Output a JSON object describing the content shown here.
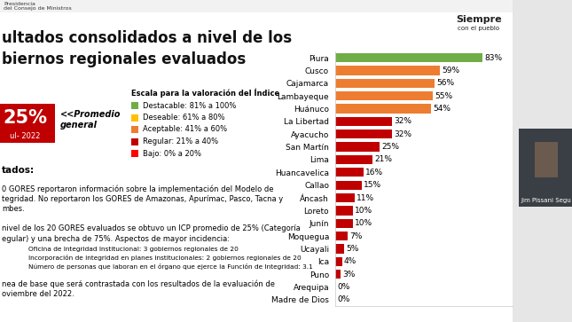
{
  "chart_data": {
    "type": "bar",
    "orientation": "horizontal",
    "categories": [
      "Piura",
      "Cusco",
      "Cajamarca",
      "Lambayeque",
      "Huánuco",
      "La Libertad",
      "Ayacucho",
      "San Martín",
      "Lima",
      "Huancavelica",
      "Callao",
      "Áncash",
      "Loreto",
      "Junín",
      "Moquegua",
      "Ucayali",
      "Ica",
      "Puno",
      "Arequipa",
      "Madre de Dios"
    ],
    "values": [
      83,
      59,
      56,
      55,
      54,
      32,
      32,
      25,
      21,
      16,
      15,
      11,
      10,
      10,
      7,
      5,
      4,
      3,
      0,
      0
    ],
    "value_labels": [
      "83%",
      "59%",
      "56%",
      "55%",
      "54%",
      "32%",
      "32%",
      "25%",
      "21%",
      "16%",
      "15%",
      "11%",
      "10%",
      "10%",
      "7%",
      "5%",
      "4%",
      "3%",
      "0%",
      "0%"
    ],
    "colors": [
      "#70ad47",
      "#ed7d31",
      "#ed7d31",
      "#ed7d31",
      "#ed7d31",
      "#c00000",
      "#c00000",
      "#c00000",
      "#c00000",
      "#c00000",
      "#c00000",
      "#c00000",
      "#c00000",
      "#c00000",
      "#c00000",
      "#c00000",
      "#c00000",
      "#c00000",
      "#c00000",
      "#c00000"
    ],
    "xlim": [
      0,
      100
    ],
    "xticks": [],
    "data_labels": true,
    "tick_labels": "y",
    "grid": false
  },
  "slide": {
    "header": [
      "Presidencia",
      "del Consejo de Ministros"
    ],
    "brand": [
      "Siempre",
      "con el pueblo"
    ],
    "title_lines": [
      "ultados consolidados a nivel de los",
      "biernos regionales evaluados"
    ],
    "scale": {
      "title": "Escala para la valoración del Índice",
      "items": [
        {
          "label": "Destacable: 81% a 100%",
          "color": "#70ad47"
        },
        {
          "label": "Deseable: 61% a 80%",
          "color": "#ffc000"
        },
        {
          "label": "Aceptable: 41% a 60%",
          "color": "#ed7d31"
        },
        {
          "label": "Regular: 21% a 40%",
          "color": "#c00000"
        },
        {
          "label": "Bajo: 0% a 20%",
          "color": "#ff0000"
        }
      ]
    },
    "summary": {
      "value": "25%",
      "period": "ul- 2022",
      "note": "<<Promedio\ngeneral"
    },
    "results": {
      "heading": "tados:",
      "paragraph1": [
        "0 GORES reportaron información sobre la implementación del Modelo de",
        "tegridad. No reportaron los GORES de Amazonas, Apurímac, Pasco, Tacna y",
        "mbes."
      ],
      "paragraph2": [
        "nivel de los 20 GORES evaluados se obtuvo un ICP promedio de 25% (Categoría",
        "egular) y una brecha de 75%. Aspectos de mayor incidencia:"
      ],
      "bullets": [
        "Oficina de Integridad Institucional: 3 gobiernos regionales de 20",
        "Incorporación de integridad en planes institucionales: 2 gobiernos regionales de 20",
        "Número de personas que laboran en el órgano que ejerce la Función de Integridad: 3.1"
      ],
      "paragraph3": [
        "nea de base que será contrastada con los resultados de la evaluación de",
        "oviembre del 2022."
      ]
    },
    "speaker": "Jim Pissani Segu"
  }
}
